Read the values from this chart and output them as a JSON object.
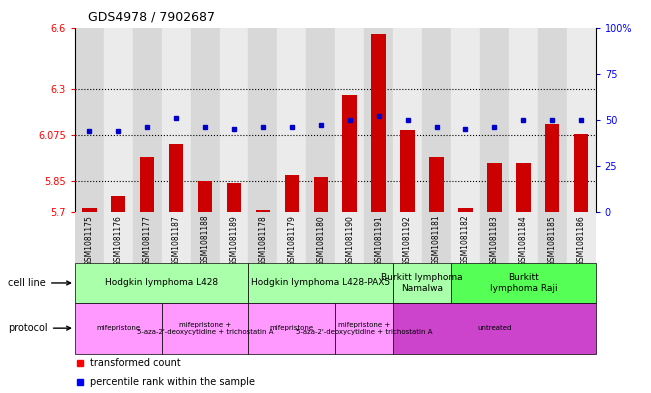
{
  "title": "GDS4978 / 7902687",
  "samples": [
    "GSM1081175",
    "GSM1081176",
    "GSM1081177",
    "GSM1081187",
    "GSM1081188",
    "GSM1081189",
    "GSM1081178",
    "GSM1081179",
    "GSM1081180",
    "GSM1081190",
    "GSM1081191",
    "GSM1081192",
    "GSM1081181",
    "GSM1081182",
    "GSM1081183",
    "GSM1081184",
    "GSM1081185",
    "GSM1081186"
  ],
  "red_values": [
    5.72,
    5.78,
    5.97,
    6.03,
    5.85,
    5.84,
    5.71,
    5.88,
    5.87,
    6.27,
    6.57,
    6.1,
    5.97,
    5.72,
    5.94,
    5.94,
    6.13,
    6.08
  ],
  "blue_values": [
    44,
    44,
    46,
    51,
    46,
    45,
    46,
    46,
    47,
    50,
    52,
    50,
    46,
    45,
    46,
    50,
    50,
    50
  ],
  "ylim_left": [
    5.7,
    6.6
  ],
  "ylim_right": [
    0,
    100
  ],
  "yticks_left": [
    5.7,
    5.85,
    6.075,
    6.3,
    6.6
  ],
  "yticks_right": [
    0,
    25,
    50,
    75,
    100
  ],
  "hlines": [
    5.85,
    6.075,
    6.3
  ],
  "bar_color": "#cc0000",
  "dot_color": "#0000cc",
  "bg_col_even": "#d8d8d8",
  "bg_col_odd": "#ebebeb",
  "cell_groups": [
    {
      "label": "Hodgkin lymphoma L428",
      "start": 0,
      "end": 5,
      "color": "#aaffaa"
    },
    {
      "label": "Hodgkin lymphoma L428-PAX5",
      "start": 6,
      "end": 10,
      "color": "#aaffaa"
    },
    {
      "label": "Burkitt lymphoma\nNamalwa",
      "start": 11,
      "end": 12,
      "color": "#aaffaa"
    },
    {
      "label": "Burkitt\nlymphoma Raji",
      "start": 13,
      "end": 17,
      "color": "#55ff55"
    }
  ],
  "proto_groups": [
    {
      "label": "mifepristone",
      "start": 0,
      "end": 2,
      "color": "#ff99ff"
    },
    {
      "label": "mifepristone +\n5-aza-2'-deoxycytidine + trichostatin A",
      "start": 3,
      "end": 5,
      "color": "#ff99ff"
    },
    {
      "label": "mifepristone",
      "start": 6,
      "end": 8,
      "color": "#ff99ff"
    },
    {
      "label": "mifepristone +\n5-aza-2'-deoxycytidine + trichostatin A",
      "start": 9,
      "end": 10,
      "color": "#ff99ff"
    },
    {
      "label": "untreated",
      "start": 11,
      "end": 17,
      "color": "#cc44cc"
    }
  ],
  "legend_red": "transformed count",
  "legend_blue": "percentile rank within the sample"
}
